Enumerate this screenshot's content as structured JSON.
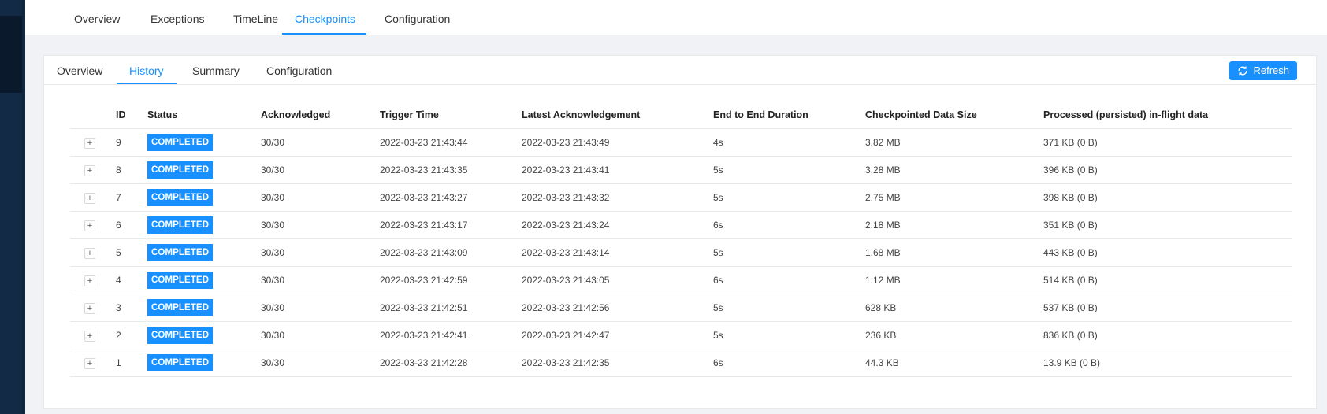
{
  "top_tabs": [
    {
      "label": "Overview",
      "active": false
    },
    {
      "label": "Exceptions",
      "active": false
    },
    {
      "label": "TimeLine",
      "active": false
    },
    {
      "label": "Checkpoints",
      "active": true
    },
    {
      "label": "Configuration",
      "active": false
    }
  ],
  "card_tabs": [
    {
      "label": "Overview",
      "active": false
    },
    {
      "label": "History",
      "active": true
    },
    {
      "label": "Summary",
      "active": false
    },
    {
      "label": "Configuration",
      "active": false
    }
  ],
  "refresh_label": "Refresh",
  "table": {
    "headers": [
      "",
      "ID",
      "Status",
      "Acknowledged",
      "Trigger Time",
      "Latest Acknowledgement",
      "End to End Duration",
      "Checkpointed Data Size",
      "Processed (persisted) in-flight data"
    ],
    "expand_symbol": "+",
    "rows": [
      {
        "id": "9",
        "status": "COMPLETED",
        "ack": "30/30",
        "trigger": "2022-03-23 21:43:44",
        "latest": "2022-03-23 21:43:49",
        "duration": "4s",
        "size": "3.82 MB",
        "inflight": "371 KB (0 B)"
      },
      {
        "id": "8",
        "status": "COMPLETED",
        "ack": "30/30",
        "trigger": "2022-03-23 21:43:35",
        "latest": "2022-03-23 21:43:41",
        "duration": "5s",
        "size": "3.28 MB",
        "inflight": "396 KB (0 B)"
      },
      {
        "id": "7",
        "status": "COMPLETED",
        "ack": "30/30",
        "trigger": "2022-03-23 21:43:27",
        "latest": "2022-03-23 21:43:32",
        "duration": "5s",
        "size": "2.75 MB",
        "inflight": "398 KB (0 B)"
      },
      {
        "id": "6",
        "status": "COMPLETED",
        "ack": "30/30",
        "trigger": "2022-03-23 21:43:17",
        "latest": "2022-03-23 21:43:24",
        "duration": "6s",
        "size": "2.18 MB",
        "inflight": "351 KB (0 B)"
      },
      {
        "id": "5",
        "status": "COMPLETED",
        "ack": "30/30",
        "trigger": "2022-03-23 21:43:09",
        "latest": "2022-03-23 21:43:14",
        "duration": "5s",
        "size": "1.68 MB",
        "inflight": "443 KB (0 B)"
      },
      {
        "id": "4",
        "status": "COMPLETED",
        "ack": "30/30",
        "trigger": "2022-03-23 21:42:59",
        "latest": "2022-03-23 21:43:05",
        "duration": "6s",
        "size": "1.12 MB",
        "inflight": "514 KB (0 B)"
      },
      {
        "id": "3",
        "status": "COMPLETED",
        "ack": "30/30",
        "trigger": "2022-03-23 21:42:51",
        "latest": "2022-03-23 21:42:56",
        "duration": "5s",
        "size": "628 KB",
        "inflight": "537 KB (0 B)"
      },
      {
        "id": "2",
        "status": "COMPLETED",
        "ack": "30/30",
        "trigger": "2022-03-23 21:42:41",
        "latest": "2022-03-23 21:42:47",
        "duration": "5s",
        "size": "236 KB",
        "inflight": "836 KB (0 B)"
      },
      {
        "id": "1",
        "status": "COMPLETED",
        "ack": "30/30",
        "trigger": "2022-03-23 21:42:28",
        "latest": "2022-03-23 21:42:35",
        "duration": "6s",
        "size": "44.3 KB",
        "inflight": "13.9 KB (0 B)"
      }
    ]
  },
  "colors": {
    "accent": "#1890ff",
    "sidebar": "#122a45"
  }
}
